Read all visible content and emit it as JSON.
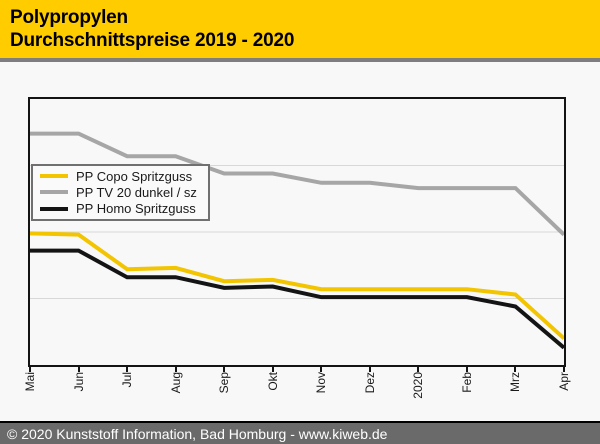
{
  "header": {
    "title_line1": "Polypropylen",
    "title_line2": "Durchschnittspreise 2019 - 2020",
    "bg_color": "#ffcc00",
    "text_color": "#000000"
  },
  "footer": {
    "text": "© 2020 Kunststoff Information, Bad Homburg - www.kiweb.de",
    "bg_color": "#6a6a6a",
    "text_color": "#ffffff"
  },
  "chart_data": {
    "type": "line",
    "title": "Polypropylen Durchschnittspreise 2019 - 2020",
    "categories": [
      "Mai",
      "Jun",
      "Jul",
      "Aug",
      "Sep",
      "Okt",
      "Nov",
      "Dez",
      "2020",
      "Feb",
      "Mrz",
      "Apr"
    ],
    "series": [
      {
        "name": "PP Copo Spritzguss",
        "color": "#f2c500",
        "values": [
          49.5,
          49,
          36,
          36.5,
          31.5,
          32,
          28.5,
          28.5,
          28.5,
          28.5,
          26.5,
          10
        ]
      },
      {
        "name": "PP TV 20 dunkel / sz",
        "color": "#a6a6a6",
        "values": [
          87,
          87,
          78.5,
          78.5,
          72,
          72,
          68.5,
          68.5,
          66.5,
          66.5,
          66.5,
          49
        ]
      },
      {
        "name": "PP Homo Spritzguss",
        "color": "#141414",
        "values": [
          43,
          43,
          33,
          33,
          29,
          29.5,
          25.5,
          25.5,
          25.5,
          25.5,
          22,
          6.5
        ]
      }
    ],
    "xlabel": "",
    "ylabel": "",
    "y_axis_labels_shown": false,
    "ylim": [
      0,
      100
    ],
    "value_unit_note": "No numeric y-axis labels are shown in the chart; series values are estimated as percent of plot height (0 = bottom axis, 100 = top axis).",
    "gridlines_y": [
      25,
      50,
      75
    ],
    "grid": "horizontal-only",
    "legend_position": "upper-left-inside",
    "x_tick_label_rotation": -90,
    "line_width": 4,
    "draw_order": [
      1,
      0,
      2
    ],
    "plot_border_color": "#141414",
    "gridline_color": "#d8d8d8",
    "background_color": "#f8f8f8"
  },
  "legend": {
    "items": [
      {
        "label": "PP Copo Spritzguss",
        "color": "#f2c500"
      },
      {
        "label": "PP TV 20 dunkel / sz",
        "color": "#a6a6a6"
      },
      {
        "label": "PP Homo Spritzguss",
        "color": "#141414"
      }
    ]
  }
}
